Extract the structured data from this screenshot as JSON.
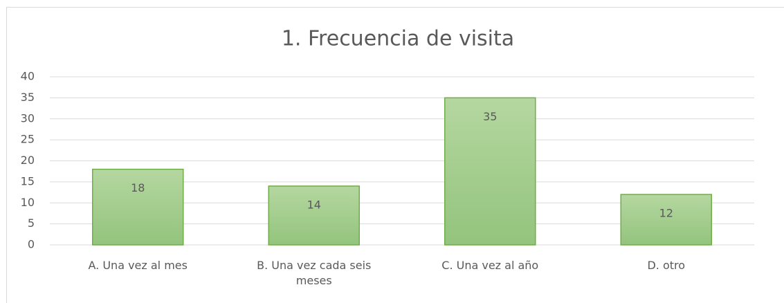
{
  "chart_data": {
    "type": "bar",
    "title": "1. Frecuencia de visita",
    "categories": [
      "A. Una vez al mes",
      "B. Una vez cada seis meses",
      "C. Una vez al año",
      "D. otro"
    ],
    "values": [
      18,
      14,
      35,
      12
    ],
    "color": "#a9d18e",
    "ylim": [
      0,
      40
    ],
    "yticks": [
      0,
      5,
      10,
      15,
      20,
      25,
      30,
      35,
      40
    ],
    "grid": true
  }
}
